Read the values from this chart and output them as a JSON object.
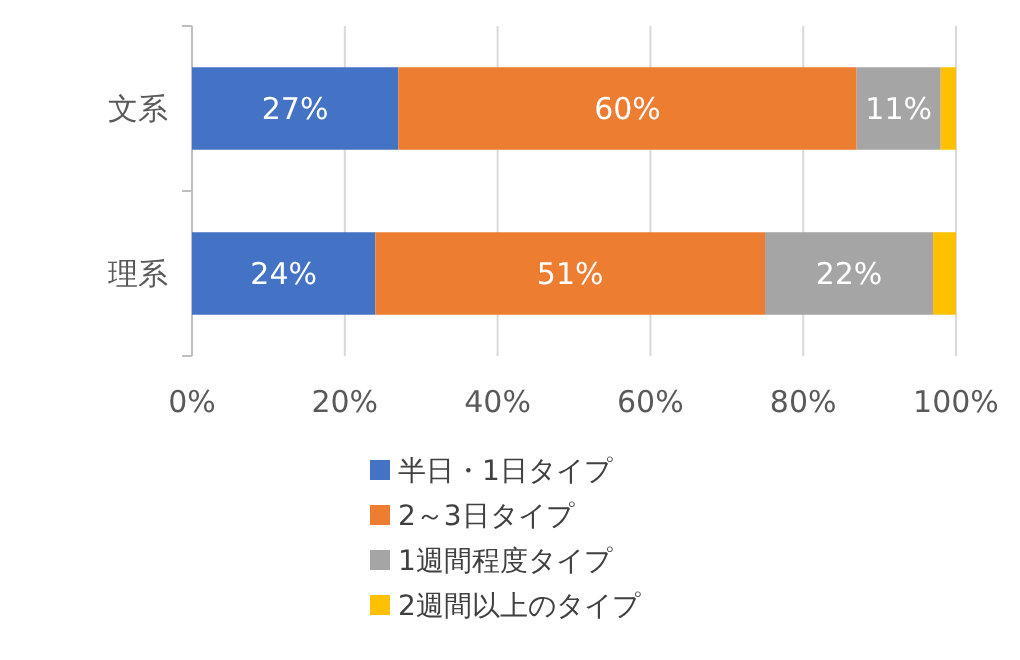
{
  "chart_data": {
    "type": "bar",
    "orientation": "horizontal",
    "stacked": true,
    "categories": [
      "文系",
      "理系"
    ],
    "series": [
      {
        "name": "半日・1日タイプ",
        "color": "#4472c4",
        "values": [
          27,
          24
        ],
        "value_labels": [
          "27%",
          "24%"
        ]
      },
      {
        "name": "2～3日タイプ",
        "color": "#ed7d31",
        "values": [
          60,
          51
        ],
        "value_labels": [
          "60%",
          "51%"
        ]
      },
      {
        "name": "1週間程度タイプ",
        "color": "#a5a5a5",
        "values": [
          11,
          22
        ],
        "value_labels": [
          "11%",
          "22%"
        ]
      },
      {
        "name": "2週間以上のタイプ",
        "color": "#ffc000",
        "values": [
          2,
          3
        ],
        "value_labels": [
          null,
          null
        ]
      }
    ],
    "xlim": [
      0,
      100
    ],
    "xticks": [
      {
        "value": 0,
        "label": "0%"
      },
      {
        "value": 20,
        "label": "20%"
      },
      {
        "value": 40,
        "label": "40%"
      },
      {
        "value": 60,
        "label": "60%"
      },
      {
        "value": 80,
        "label": "80%"
      },
      {
        "value": 100,
        "label": "100%"
      }
    ],
    "grid": "x",
    "legend": "bottom"
  }
}
